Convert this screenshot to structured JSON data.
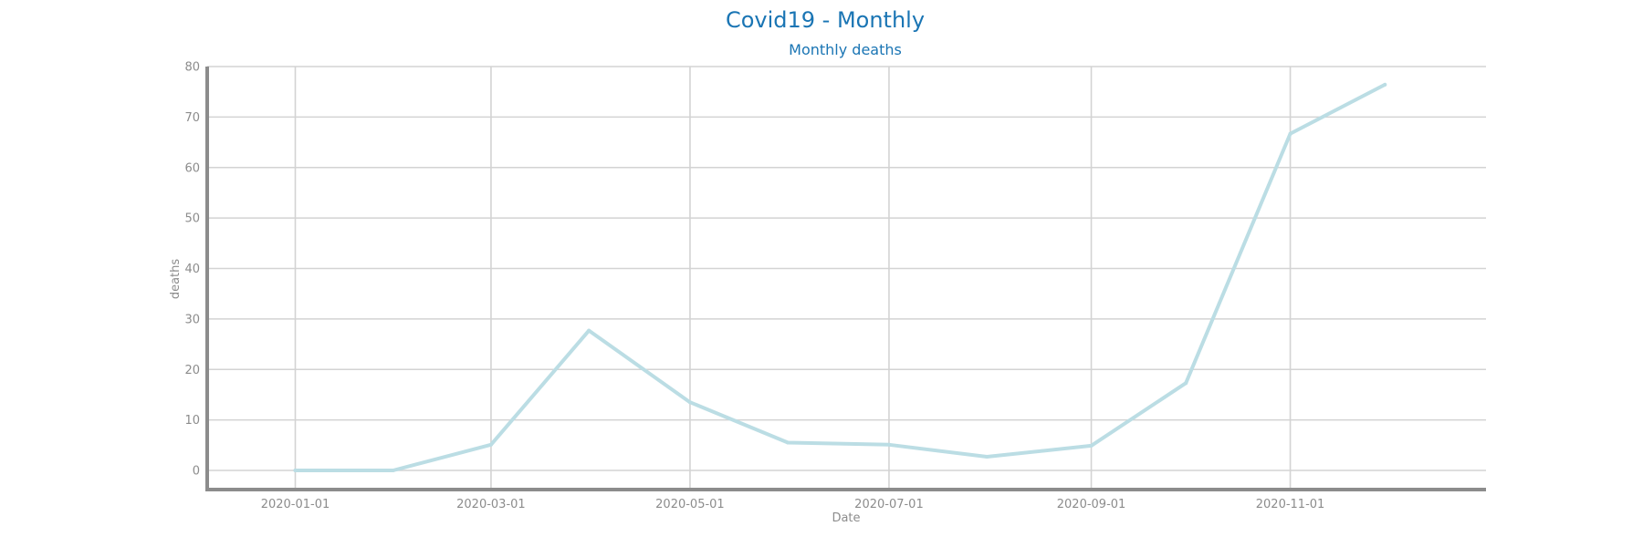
{
  "chart_data": {
    "type": "line",
    "title": "Covid19 - Monthly",
    "subtitle": "Monthly deaths",
    "xlabel": "Date",
    "ylabel": "deaths",
    "ylim": [
      -4,
      80
    ],
    "yticks": [
      0,
      10,
      20,
      30,
      40,
      50,
      60,
      70,
      80
    ],
    "xticks": [
      "2020-01-01",
      "2020-03-01",
      "2020-05-01",
      "2020-07-01",
      "2020-09-01",
      "2020-11-01"
    ],
    "xlim": [
      "2019-12-05",
      "2020-12-31"
    ],
    "grid": true,
    "series": [
      {
        "x": [
          "2020-01-01",
          "2020-01-31",
          "2020-03-01",
          "2020-03-31",
          "2020-05-01",
          "2020-05-31",
          "2020-07-01",
          "2020-07-31",
          "2020-09-01",
          "2020-09-30",
          "2020-11-01",
          "2020-11-30"
        ],
        "values": [
          0,
          0,
          5.1,
          27.7,
          13.5,
          5.5,
          5.1,
          2.7,
          4.9,
          17.3,
          66.7,
          76.4
        ],
        "color": "#bbdde4"
      }
    ],
    "colors": {
      "title": "#1a75b4",
      "axis": "#8c8c8c",
      "grid": "#d3d3d3",
      "tick_text": "#8c8c8c"
    }
  }
}
